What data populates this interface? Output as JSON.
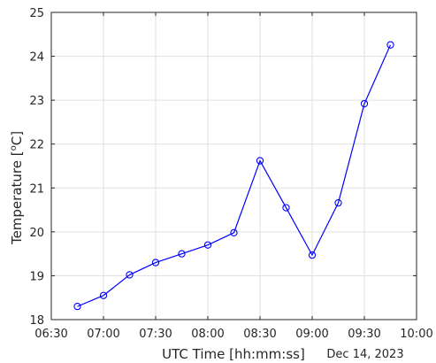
{
  "chart_data": {
    "type": "line",
    "title": "",
    "xlabel": "UTC Time [hh:mm:ss]",
    "ylabel_main": "Temperature [",
    "ylabel_sup": "o",
    "ylabel_end": "C]",
    "date_label": "Dec 14, 2023",
    "x_unit": "hh:mm",
    "xlim": [
      "06:30",
      "10:00"
    ],
    "ylim": [
      18,
      25
    ],
    "xticks": [
      "06:30",
      "07:00",
      "07:30",
      "08:00",
      "08:30",
      "09:00",
      "09:30",
      "10:00"
    ],
    "yticks": [
      18,
      19,
      20,
      21,
      22,
      23,
      24,
      25
    ],
    "grid": true,
    "series": [
      {
        "color": "#0000ff",
        "marker": "circle",
        "points": [
          {
            "x": "06:45",
            "y": 18.3
          },
          {
            "x": "07:00",
            "y": 18.55
          },
          {
            "x": "07:15",
            "y": 19.02
          },
          {
            "x": "07:30",
            "y": 19.3
          },
          {
            "x": "07:45",
            "y": 19.5
          },
          {
            "x": "08:00",
            "y": 19.7
          },
          {
            "x": "08:15",
            "y": 19.98
          },
          {
            "x": "08:30",
            "y": 21.62
          },
          {
            "x": "08:45",
            "y": 20.55
          },
          {
            "x": "09:00",
            "y": 19.47
          },
          {
            "x": "09:15",
            "y": 20.66
          },
          {
            "x": "09:30",
            "y": 22.92
          },
          {
            "x": "09:45",
            "y": 24.26
          }
        ]
      }
    ]
  }
}
